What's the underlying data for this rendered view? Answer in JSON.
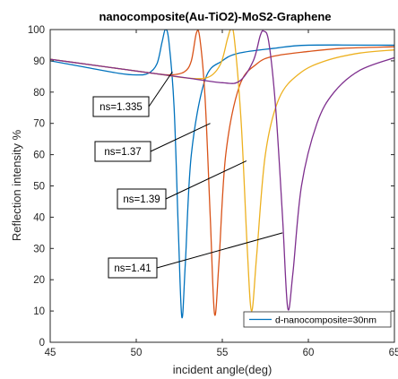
{
  "chart_data": {
    "type": "line",
    "title": "nanocomposite(Au-TiO2)-MoS2-Graphene",
    "xlabel": "incident angle(deg)",
    "ylabel": "Reflection intensity %",
    "xlim": [
      45,
      65
    ],
    "ylim": [
      0,
      100
    ],
    "x_ticks": [
      "45",
      "50",
      "55",
      "60",
      "65"
    ],
    "y_ticks": [
      "0",
      "10",
      "20",
      "30",
      "40",
      "50",
      "60",
      "70",
      "80",
      "90",
      "100"
    ],
    "grid": false,
    "legend_position": "bottom-right",
    "legend": [
      "d-nanocomposite=30nm"
    ],
    "series": [
      {
        "name": "ns=1.335",
        "color": "#0072bd",
        "points": [
          [
            45,
            90
          ],
          [
            47,
            88
          ],
          [
            49,
            86
          ],
          [
            50,
            85.5
          ],
          [
            50.7,
            86
          ],
          [
            51.2,
            89
          ],
          [
            51.5,
            96
          ],
          [
            51.7,
            100
          ],
          [
            51.9,
            96
          ],
          [
            52.2,
            75
          ],
          [
            52.45,
            35
          ],
          [
            52.65,
            8
          ],
          [
            52.85,
            25
          ],
          [
            53.2,
            60
          ],
          [
            54,
            84
          ],
          [
            55,
            90
          ],
          [
            56,
            92.5
          ],
          [
            58,
            94
          ],
          [
            60,
            95
          ],
          [
            65,
            95
          ]
        ]
      },
      {
        "name": "ns=1.37",
        "color": "#d95319",
        "points": [
          [
            45,
            90.5
          ],
          [
            47,
            89
          ],
          [
            49,
            87.5
          ],
          [
            51,
            86
          ],
          [
            52,
            85.5
          ],
          [
            52.8,
            86.5
          ],
          [
            53.2,
            90
          ],
          [
            53.5,
            99
          ],
          [
            53.7,
            97
          ],
          [
            54,
            78
          ],
          [
            54.3,
            40
          ],
          [
            54.55,
            9
          ],
          [
            54.8,
            25
          ],
          [
            55.2,
            60
          ],
          [
            56,
            82
          ],
          [
            57,
            89
          ],
          [
            58,
            91.5
          ],
          [
            60,
            93
          ],
          [
            62,
            94
          ],
          [
            65,
            94.5
          ]
        ]
      },
      {
        "name": "ns=1.39",
        "color": "#edb120",
        "points": [
          [
            45,
            90.5
          ],
          [
            47,
            89
          ],
          [
            49,
            87.5
          ],
          [
            51,
            86
          ],
          [
            53,
            84.5
          ],
          [
            54.2,
            84.8
          ],
          [
            54.9,
            89
          ],
          [
            55.3,
            97
          ],
          [
            55.5,
            100
          ],
          [
            55.7,
            97
          ],
          [
            56.1,
            70
          ],
          [
            56.45,
            30
          ],
          [
            56.7,
            10
          ],
          [
            57,
            28
          ],
          [
            57.5,
            60
          ],
          [
            58.3,
            78
          ],
          [
            59.5,
            86
          ],
          [
            61,
            90
          ],
          [
            63,
            92.5
          ],
          [
            65,
            93.5
          ]
        ]
      },
      {
        "name": "ns=1.41",
        "color": "#7e2f8e",
        "points": [
          [
            45,
            90.5
          ],
          [
            47,
            89
          ],
          [
            49,
            87.5
          ],
          [
            51,
            86
          ],
          [
            53,
            84.5
          ],
          [
            55,
            83
          ],
          [
            56,
            83.5
          ],
          [
            56.8,
            90
          ],
          [
            57.2,
            98
          ],
          [
            57.4,
            99.5
          ],
          [
            57.7,
            96
          ],
          [
            58.1,
            75
          ],
          [
            58.5,
            40
          ],
          [
            58.8,
            11
          ],
          [
            59.1,
            22
          ],
          [
            59.6,
            50
          ],
          [
            60.5,
            70
          ],
          [
            61.5,
            80
          ],
          [
            63,
            87
          ],
          [
            65,
            91
          ]
        ]
      }
    ],
    "annotations": [
      {
        "text": "ns=1.335",
        "arrow_to": [
          52.1,
          86.5
        ]
      },
      {
        "text": "ns=1.37",
        "arrow_to": [
          54.3,
          70
        ]
      },
      {
        "text": "ns=1.39",
        "arrow_to": [
          56.4,
          58
        ]
      },
      {
        "text": "ns=1.41",
        "arrow_to": [
          58.5,
          35
        ]
      }
    ]
  }
}
